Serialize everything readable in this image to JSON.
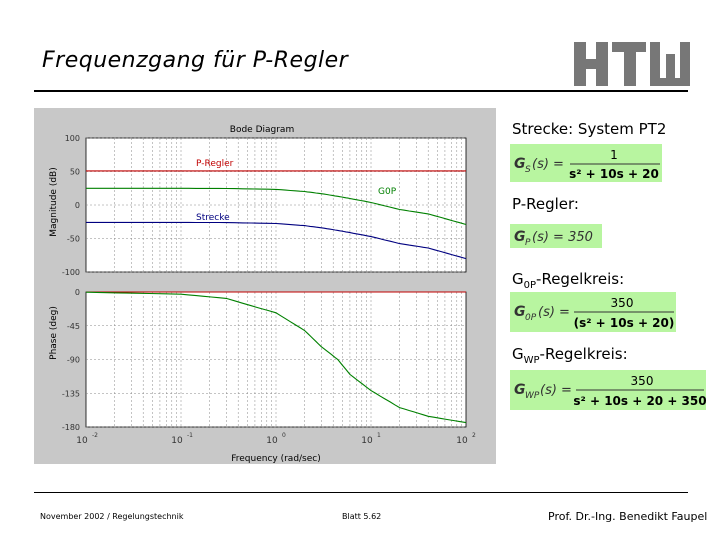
{
  "slide": {
    "title": "Frequenzgang für P-Regler",
    "footer_left": "November 2002 / Regelungstechnik",
    "footer_center": "Blatt 5.62",
    "footer_right": "Prof. Dr.-Ing. Benedikt Faupel"
  },
  "logo": {
    "text": "HTW",
    "color": "#777777"
  },
  "formulas": {
    "strecke": {
      "label": "Strecke: System PT2",
      "lhs": "G",
      "lhs_sub": "S",
      "arg": "(s) =",
      "num": "1",
      "den": "s² + 10s + 20"
    },
    "regler": {
      "label": "P-Regler:",
      "lhs": "G",
      "lhs_sub": "P",
      "arg": "(s) = 350"
    },
    "g0p": {
      "label_main": "G",
      "label_sub": "0P",
      "label_rest": "-Regelkreis:",
      "lhs": "G",
      "lhs_sub": "0P",
      "arg": "(s) =",
      "num": "350",
      "den": "(s² + 10s + 20)"
    },
    "gwp": {
      "label_main": "G",
      "label_sub": "WP",
      "label_rest": "-Regelkreis:",
      "lhs": "G",
      "lhs_sub": "WP",
      "arg": "(s) =",
      "num": "350",
      "den": "s² + 10s + 20 + 350"
    },
    "fill_color": "#b8f5a0"
  },
  "chart_data": {
    "type": "line",
    "title": "Bode Diagram",
    "xlabel": "Frequency (rad/sec)",
    "xscale": "log",
    "xlim": [
      0.01,
      100
    ],
    "x_tick_labels": [
      {
        "base": "10",
        "exp": "-2"
      },
      {
        "base": "10",
        "exp": "-1"
      },
      {
        "base": "10",
        "exp": "0"
      },
      {
        "base": "10",
        "exp": "1"
      },
      {
        "base": "10",
        "exp": "2"
      }
    ],
    "grid": true,
    "magnitude": {
      "ylabel": "Magnitude (dB)",
      "ylim": [
        -100,
        100
      ],
      "yticks": [
        100,
        50,
        0,
        -50,
        -100
      ],
      "series": [
        {
          "name": "P-Regler",
          "color": "#c00000",
          "x": [
            0.01,
            0.1,
            1,
            10,
            100
          ],
          "y": [
            50.9,
            50.9,
            50.9,
            50.9,
            50.9
          ]
        },
        {
          "name": "G0P",
          "color": "#008000",
          "x": [
            0.01,
            0.1,
            0.3,
            1,
            2,
            3,
            4.47,
            6,
            10,
            20,
            40,
            100
          ],
          "y": [
            24.9,
            24.9,
            24.7,
            23.3,
            20.1,
            16.9,
            13.0,
            9.7,
            3.8,
            -6.7,
            -13.3,
            -29.1
          ]
        },
        {
          "name": "Strecke",
          "color": "#000080",
          "x": [
            0.01,
            0.1,
            0.3,
            1,
            2,
            3,
            4.47,
            6,
            10,
            20,
            40,
            100
          ],
          "y": [
            -26.0,
            -26.0,
            -26.2,
            -27.6,
            -30.8,
            -34.0,
            -37.9,
            -41.2,
            -47.1,
            -57.6,
            -64.2,
            -80.0
          ]
        }
      ]
    },
    "phase": {
      "ylabel": "Phase (deg)",
      "ylim": [
        -180,
        0
      ],
      "yticks": [
        0,
        -45,
        -90,
        -135,
        -180
      ],
      "series": [
        {
          "name": "P-Regler",
          "color": "#c00000",
          "x": [
            0.01,
            100
          ],
          "y": [
            0,
            0
          ]
        },
        {
          "name": "G0P",
          "color": "#008000",
          "x": [
            0.01,
            0.1,
            0.3,
            1,
            2,
            3,
            4.47,
            6,
            10,
            20,
            40,
            100
          ],
          "y": [
            -0.3,
            -2.9,
            -8.6,
            -27.8,
            -51.3,
            -72.9,
            -90.0,
            -109.9,
            -131.5,
            -154.1,
            -165.7,
            -174.2
          ]
        }
      ]
    }
  }
}
